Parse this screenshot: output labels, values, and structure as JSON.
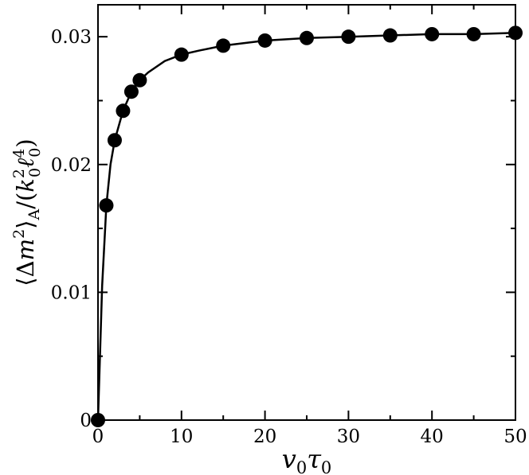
{
  "chart_data": {
    "type": "scatter",
    "xlabel": "v0τ0",
    "ylabel": "⟨Δm²⟩A/(k0²ℓ0⁴)",
    "xlim": [
      0,
      50
    ],
    "ylim": [
      0,
      0.0325
    ],
    "xticks": [
      0,
      10,
      20,
      30,
      40,
      50
    ],
    "xtick_labels": [
      "0",
      "10",
      "20",
      "30",
      "40",
      "50"
    ],
    "yticks": [
      0,
      0.01,
      0.02,
      0.03
    ],
    "ytick_labels": [
      "0",
      "0.01",
      "0.02",
      "0.03"
    ],
    "grid": false,
    "points": {
      "x": [
        0,
        1,
        2,
        3,
        4,
        5,
        10,
        15,
        20,
        25,
        30,
        35,
        40,
        45,
        50
      ],
      "y": [
        0.0,
        0.0168,
        0.0219,
        0.0242,
        0.0257,
        0.0266,
        0.0286,
        0.0293,
        0.0297,
        0.0299,
        0.03,
        0.0301,
        0.0302,
        0.0302,
        0.0303
      ]
    },
    "fit_line": {
      "x": [
        0,
        0.5,
        1,
        1.5,
        2,
        3,
        4,
        5,
        6,
        8,
        10,
        12,
        15,
        20,
        25,
        30,
        35,
        40,
        45,
        50
      ],
      "y": [
        0.0,
        0.0105,
        0.0168,
        0.02,
        0.0219,
        0.0242,
        0.0257,
        0.0266,
        0.0272,
        0.0281,
        0.0286,
        0.0289,
        0.0293,
        0.0297,
        0.0299,
        0.03,
        0.0301,
        0.0302,
        0.0302,
        0.0303
      ]
    }
  }
}
